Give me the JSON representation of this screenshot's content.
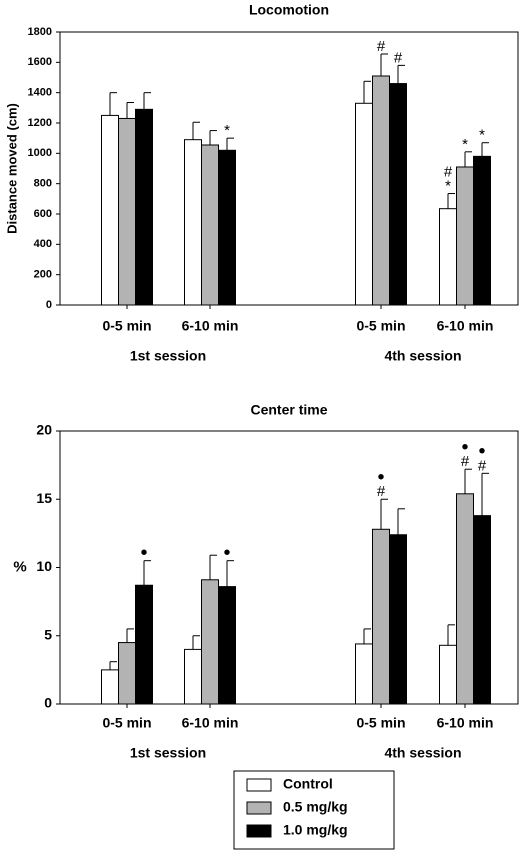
{
  "chart_data": [
    {
      "type": "bar",
      "title": "Locomotion",
      "ylabel": "Distance moved (cm)",
      "xlabel": "",
      "ylim": [
        0,
        1800
      ],
      "yticks": [
        0,
        200,
        400,
        600,
        800,
        1000,
        1200,
        1400,
        1600,
        1800
      ],
      "categories": [
        "0-5 min",
        "6-10 min",
        "0-5 min",
        "6-10 min"
      ],
      "groups": [
        "1st session",
        "4th session"
      ],
      "series": [
        {
          "name": "Control",
          "color": "#ffffff",
          "values": [
            1250,
            1090,
            1330,
            635
          ],
          "errors": [
            150,
            115,
            145,
            100
          ],
          "marks": [
            "",
            "",
            "",
            "#\n*"
          ]
        },
        {
          "name": "0.5 mg/kg",
          "color": "#b3b3b3",
          "values": [
            1230,
            1055,
            1510,
            910
          ],
          "errors": [
            105,
            95,
            145,
            100
          ],
          "marks": [
            "",
            "",
            "#",
            "*"
          ]
        },
        {
          "name": "1.0 mg/kg",
          "color": "#000000",
          "values": [
            1290,
            1020,
            1460,
            980
          ],
          "errors": [
            110,
            80,
            120,
            90
          ],
          "marks": [
            "",
            "*",
            "#",
            "*"
          ]
        }
      ],
      "grid": false
    },
    {
      "type": "bar",
      "title": "Center time",
      "ylabel": "%",
      "xlabel": "",
      "ylim": [
        0,
        20
      ],
      "yticks": [
        0,
        5,
        10,
        15,
        20
      ],
      "categories": [
        "0-5 min",
        "6-10 min",
        "0-5 min",
        "6-10 min"
      ],
      "groups": [
        "1st session",
        "4th session"
      ],
      "series": [
        {
          "name": "Control",
          "color": "#ffffff",
          "values": [
            2.5,
            4.0,
            4.4,
            4.3
          ],
          "errors": [
            0.6,
            1.0,
            1.1,
            1.5
          ],
          "marks": [
            "",
            "",
            "",
            ""
          ]
        },
        {
          "name": "0.5 mg/kg",
          "color": "#b3b3b3",
          "values": [
            4.5,
            9.1,
            12.8,
            15.4
          ],
          "errors": [
            1.0,
            1.8,
            2.2,
            1.8
          ],
          "marks": [
            "",
            "",
            "•\n#",
            "•\n#"
          ]
        },
        {
          "name": "1.0 mg/kg",
          "color": "#000000",
          "values": [
            8.7,
            8.6,
            12.4,
            13.8
          ],
          "errors": [
            1.8,
            1.9,
            1.9,
            3.1
          ],
          "marks": [
            "•",
            "•",
            "",
            "•\n#"
          ]
        }
      ],
      "grid": false
    }
  ],
  "legend": {
    "placement": "bottom-center",
    "entries": [
      {
        "label": "Control",
        "color": "#ffffff"
      },
      {
        "label": "0.5 mg/kg",
        "color": "#b3b3b3"
      },
      {
        "label": "1.0 mg/kg",
        "color": "#000000"
      }
    ]
  }
}
